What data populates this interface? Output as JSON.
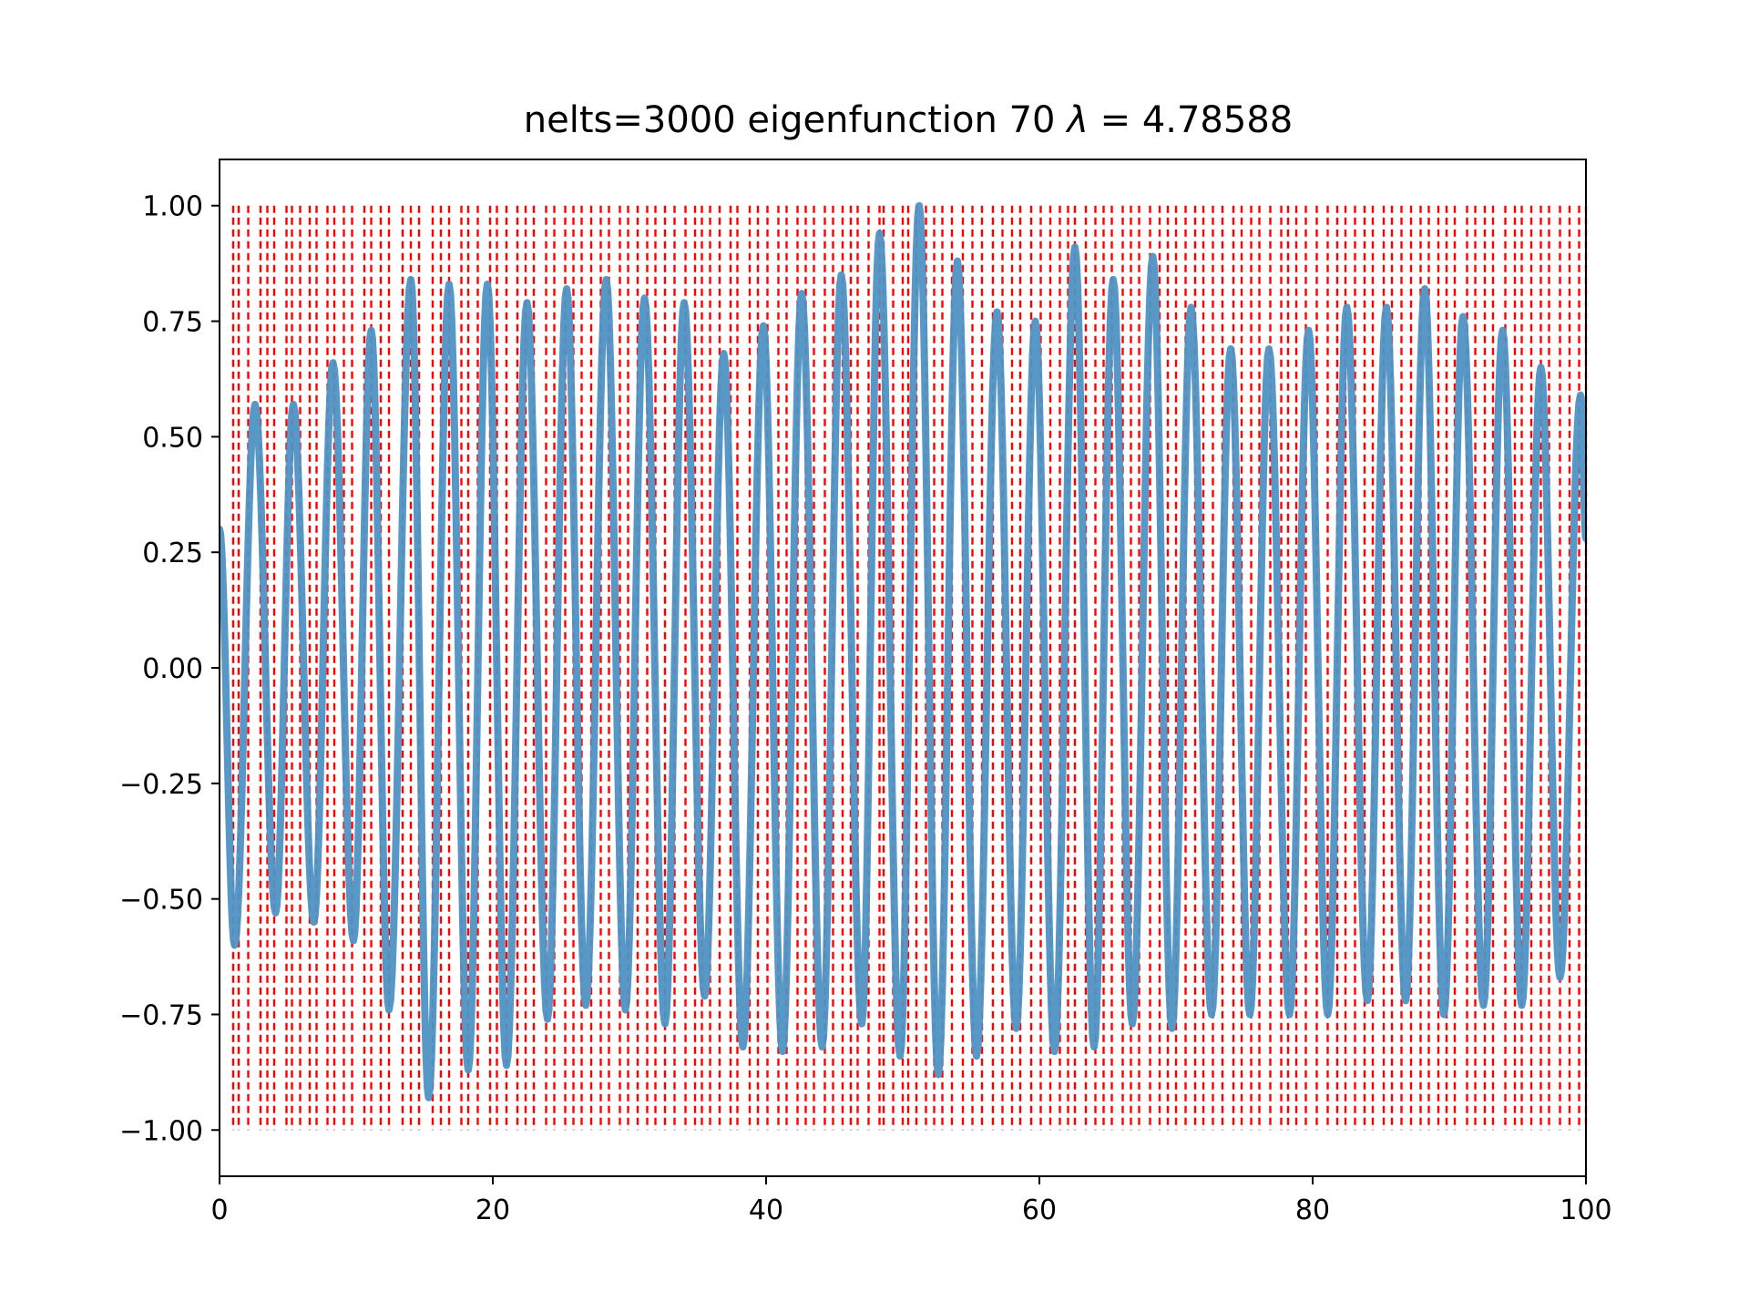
{
  "title": {
    "prefix": "nelts=3000  eigenfunction 70  ",
    "symbol": "λ",
    "suffix": " = 4.78588"
  },
  "colors": {
    "curve": "#4f92c4",
    "gridlines": "#ff0000",
    "axes": "#000000",
    "background": "#ffffff"
  },
  "chart_data": {
    "type": "line",
    "xlim": [
      0,
      100
    ],
    "ylim": [
      -1.1,
      1.1
    ],
    "xticks": [
      0,
      20,
      40,
      60,
      80,
      100
    ],
    "xtick_labels": [
      "0",
      "20",
      "40",
      "60",
      "80",
      "100"
    ],
    "yticks": [
      1.0,
      0.75,
      0.5,
      0.25,
      0.0,
      -0.25,
      -0.5,
      -0.75,
      -1.0
    ],
    "ytick_labels": [
      "1.00",
      "0.75",
      "0.50",
      "0.25",
      "0.00",
      "−0.25",
      "−0.50",
      "−0.75",
      "−1.00"
    ],
    "vertical_line_range": [
      -1.0,
      1.0
    ],
    "vertical_line_style": "dashed",
    "vertical_lines_x": [
      1.0,
      1.4,
      2.1,
      3.0,
      3.5,
      4.0,
      4.9,
      5.3,
      5.9,
      6.6,
      7.1,
      7.9,
      8.4,
      9.1,
      9.7,
      10.6,
      11.1,
      11.8,
      12.4,
      13.4,
      14.0,
      14.6,
      15.6,
      16.2,
      16.8,
      17.7,
      18.2,
      18.9,
      19.8,
      20.3,
      21.0,
      21.8,
      22.4,
      23.0,
      23.9,
      24.5,
      25.3,
      25.9,
      26.5,
      27.2,
      27.9,
      28.5,
      29.3,
      29.9,
      30.6,
      31.3,
      31.9,
      32.6,
      33.3,
      34.1,
      34.8,
      35.3,
      35.9,
      36.6,
      37.4,
      37.9,
      38.8,
      39.4,
      40.1,
      40.9,
      41.5,
      42.3,
      42.9,
      43.5,
      44.3,
      44.9,
      45.6,
      46.2,
      46.7,
      47.5,
      48.3,
      48.6,
      49.3,
      50.0,
      50.4,
      51.0,
      51.7,
      52.3,
      52.9,
      53.6,
      54.4,
      55.1,
      55.8,
      56.6,
      57.3,
      58.0,
      58.6,
      59.4,
      60.1,
      60.8,
      61.5,
      62.1,
      62.6,
      63.4,
      64.1,
      64.7,
      65.3,
      66.1,
      66.7,
      67.3,
      68.1,
      68.8,
      69.4,
      70.0,
      70.7,
      71.4,
      72.0,
      72.7,
      73.4,
      74.2,
      74.8,
      75.5,
      76.1,
      76.9,
      77.7,
      78.2,
      78.8,
      79.5,
      80.3,
      81.1,
      81.8,
      82.4,
      83.1,
      83.8,
      84.4,
      85.2,
      85.8,
      86.5,
      87.2,
      87.9,
      88.5,
      89.2,
      89.8,
      90.4,
      91.3,
      91.9,
      92.6,
      93.2,
      94.1,
      94.8,
      95.3,
      96.0,
      96.7,
      97.3,
      98.1,
      98.8,
      99.5,
      100.0
    ],
    "series": [
      {
        "points": [
          [
            0.0,
            0.3
          ],
          [
            1.1,
            -0.6
          ],
          [
            2.6,
            0.57
          ],
          [
            4.1,
            -0.53
          ],
          [
            5.4,
            0.57
          ],
          [
            6.9,
            -0.55
          ],
          [
            8.3,
            0.66
          ],
          [
            9.8,
            -0.59
          ],
          [
            11.1,
            0.73
          ],
          [
            12.4,
            -0.74
          ],
          [
            14.0,
            0.84
          ],
          [
            15.3,
            -0.93
          ],
          [
            16.8,
            0.83
          ],
          [
            18.2,
            -0.87
          ],
          [
            19.6,
            0.83
          ],
          [
            21.0,
            -0.86
          ],
          [
            22.5,
            0.79
          ],
          [
            24.0,
            -0.76
          ],
          [
            25.4,
            0.82
          ],
          [
            26.8,
            -0.73
          ],
          [
            28.3,
            0.84
          ],
          [
            29.7,
            -0.74
          ],
          [
            31.1,
            0.8
          ],
          [
            32.6,
            -0.77
          ],
          [
            34.0,
            0.79
          ],
          [
            35.5,
            -0.71
          ],
          [
            36.9,
            0.68
          ],
          [
            38.3,
            -0.82
          ],
          [
            39.8,
            0.74
          ],
          [
            41.2,
            -0.83
          ],
          [
            42.6,
            0.81
          ],
          [
            44.1,
            -0.82
          ],
          [
            45.5,
            0.85
          ],
          [
            47.0,
            -0.77
          ],
          [
            48.3,
            0.94
          ],
          [
            49.8,
            -0.84
          ],
          [
            51.2,
            1.0
          ],
          [
            52.6,
            -0.88
          ],
          [
            54.0,
            0.88
          ],
          [
            55.4,
            -0.84
          ],
          [
            56.9,
            0.77
          ],
          [
            58.3,
            -0.78
          ],
          [
            59.7,
            0.75
          ],
          [
            61.1,
            -0.83
          ],
          [
            62.6,
            0.91
          ],
          [
            64.0,
            -0.82
          ],
          [
            65.4,
            0.84
          ],
          [
            66.8,
            -0.77
          ],
          [
            68.3,
            0.89
          ],
          [
            69.7,
            -0.78
          ],
          [
            71.1,
            0.78
          ],
          [
            72.6,
            -0.75
          ],
          [
            74.0,
            0.69
          ],
          [
            75.4,
            -0.75
          ],
          [
            76.8,
            0.69
          ],
          [
            78.3,
            -0.75
          ],
          [
            79.7,
            0.73
          ],
          [
            81.1,
            -0.75
          ],
          [
            82.5,
            0.78
          ],
          [
            84.0,
            -0.72
          ],
          [
            85.4,
            0.78
          ],
          [
            86.8,
            -0.72
          ],
          [
            88.2,
            0.82
          ],
          [
            89.6,
            -0.75
          ],
          [
            91.0,
            0.76
          ],
          [
            92.5,
            -0.73
          ],
          [
            93.9,
            0.73
          ],
          [
            95.3,
            -0.73
          ],
          [
            96.7,
            0.65
          ],
          [
            98.1,
            -0.67
          ],
          [
            99.6,
            0.59
          ],
          [
            100.0,
            0.28
          ]
        ]
      }
    ]
  }
}
